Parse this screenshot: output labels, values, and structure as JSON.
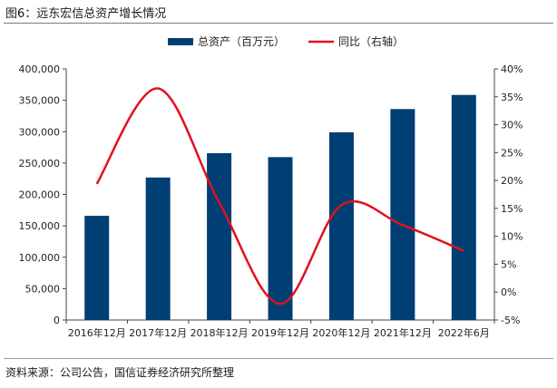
{
  "title": "图6：远东宏信总资产增长情况",
  "source": "资料来源：公司公告，国信证券经济研究所整理",
  "chart_data": {
    "type": "bar+line",
    "categories": [
      "2016年12月",
      "2017年12月",
      "2018年12月",
      "2019年12月",
      "2020年12月",
      "2021年12月",
      "2022年6月"
    ],
    "series": [
      {
        "name": "总资产（百万元）",
        "type": "bar",
        "axis": "left",
        "color": "#003f73",
        "values": [
          166000,
          227000,
          265700,
          259500,
          299000,
          336000,
          358500
        ]
      },
      {
        "name": "同比（右轴）",
        "type": "line",
        "axis": "right",
        "color": "#e0101e",
        "values": [
          19.4,
          36.5,
          16.1,
          -2.1,
          15.6,
          12.0,
          7.4
        ]
      }
    ],
    "left_axis": {
      "min": 0,
      "max": 400000,
      "ticks": [
        "0",
        "50,000",
        "100,000",
        "150,000",
        "200,000",
        "250,000",
        "300,000",
        "350,000",
        "400,000"
      ]
    },
    "right_axis": {
      "min": -5,
      "max": 40,
      "ticks": [
        "-5%",
        "0%",
        "5%",
        "10%",
        "15%",
        "20%",
        "25%",
        "30%",
        "35%",
        "40%"
      ]
    },
    "legend_position": "top-center",
    "grid": false
  }
}
